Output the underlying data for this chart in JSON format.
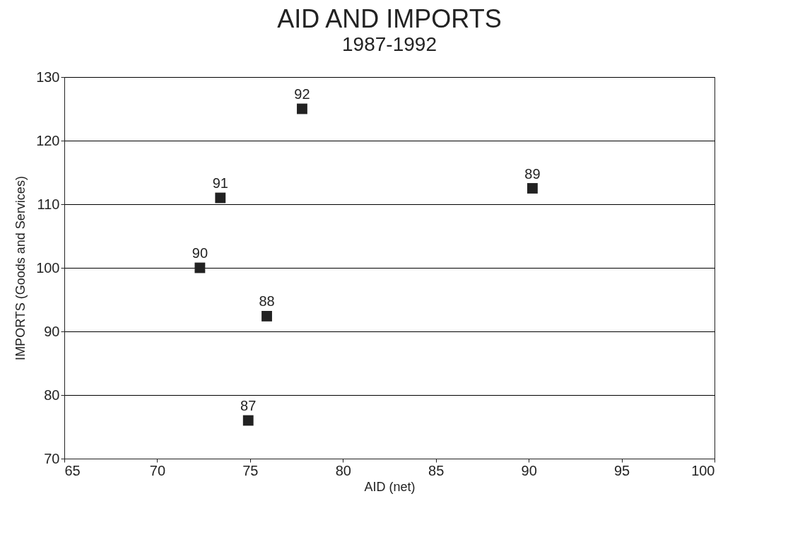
{
  "chart_data": {
    "type": "scatter",
    "title": "AID AND IMPORTS",
    "subtitle": "1987-1992",
    "xlabel": "AID (net)",
    "ylabel": "IMPORTS (Goods and Services)",
    "x": [
      74.9,
      75.9,
      90.2,
      72.3,
      73.4,
      77.8
    ],
    "values": [
      76,
      92.4,
      112.5,
      100,
      111,
      125
    ],
    "annotations": [
      {
        "text": "87",
        "x": 74.9,
        "y": 76
      },
      {
        "text": "88",
        "x": 75.9,
        "y": 92.4
      },
      {
        "text": "89",
        "x": 90.2,
        "y": 112.5
      },
      {
        "text": "90",
        "x": 72.3,
        "y": 100
      },
      {
        "text": "91",
        "x": 73.4,
        "y": 111
      },
      {
        "text": "92",
        "x": 77.8,
        "y": 125
      }
    ],
    "color": "#222222",
    "marker": "square",
    "xlim": [
      65,
      100
    ],
    "xticks": [
      65,
      70,
      75,
      80,
      85,
      90,
      95,
      100
    ],
    "ylim": [
      70,
      130
    ],
    "yticks": [
      70,
      80,
      90,
      100,
      110,
      120,
      130
    ],
    "grid": "y"
  }
}
